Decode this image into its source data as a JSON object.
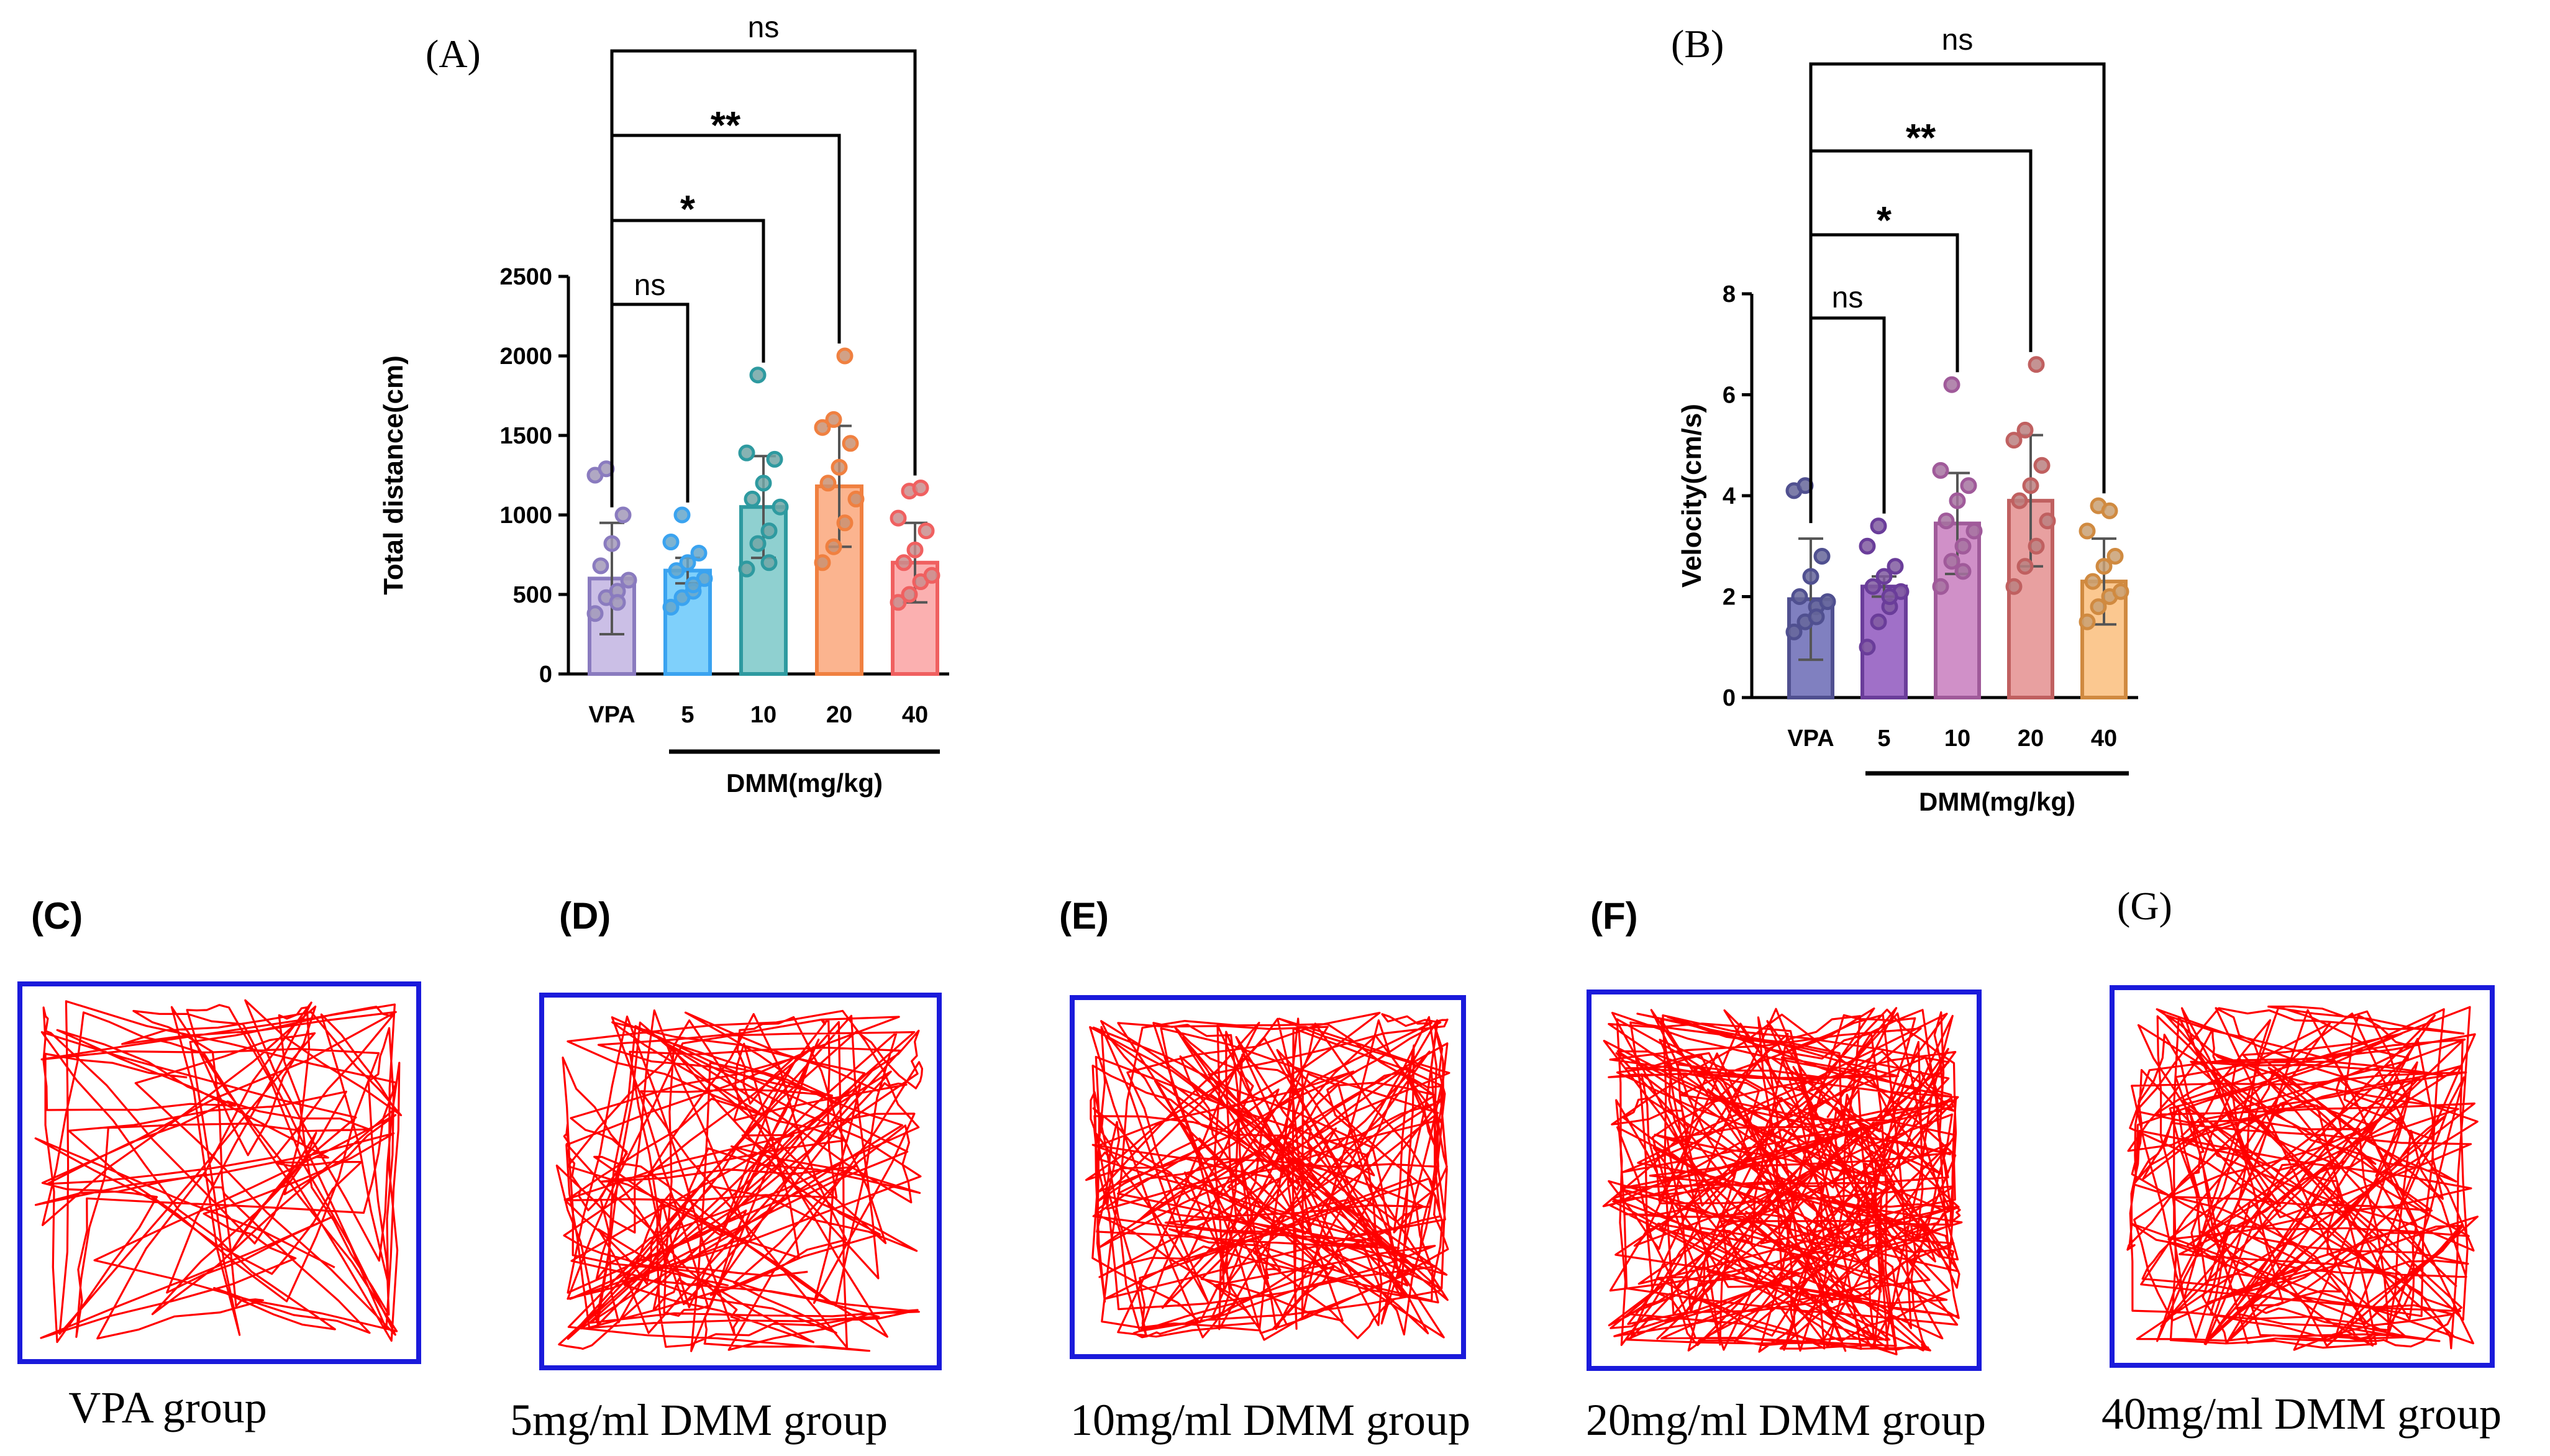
{
  "figure": {
    "panel_labels": {
      "A": "(A)",
      "B": "(B)",
      "C": "(C)",
      "D": "(D)",
      "E": "(E)",
      "F": "(F)",
      "G": "(G)"
    }
  },
  "chart_data": [
    {
      "type": "bar",
      "panel": "(A)",
      "title": "",
      "ylabel": "Total distance(cm)",
      "xlabel": "DMM(mg/kg)",
      "categories": [
        "VPA",
        "5",
        "10",
        "20",
        "40"
      ],
      "values": [
        600,
        650,
        1050,
        1180,
        700
      ],
      "sd": [
        350,
        80,
        320,
        380,
        250
      ],
      "ylim": [
        0,
        2500
      ],
      "yticks": [
        0,
        500,
        1000,
        1500,
        2000,
        2500
      ],
      "ytick_labels": [
        "0",
        "500",
        "1000",
        "1500",
        "2000",
        "2500"
      ],
      "colors": {
        "fill": [
          "#cbbfe6",
          "#7fd0fb",
          "#8fd0d0",
          "#fbb48f",
          "#fbb0b0"
        ],
        "edge": [
          "#8a7bbf",
          "#3aa3f0",
          "#2e9aa0",
          "#f08040",
          "#f06060"
        ]
      },
      "points": [
        [
          380,
          480,
          520,
          590,
          680,
          820,
          1000,
          1250,
          1290,
          450
        ],
        [
          420,
          480,
          520,
          600,
          650,
          700,
          760,
          830,
          1000,
          560
        ],
        [
          660,
          820,
          900,
          1050,
          1100,
          1200,
          1350,
          1390,
          1880,
          700
        ],
        [
          700,
          800,
          950,
          1100,
          1200,
          1300,
          1450,
          1550,
          1600,
          2000
        ],
        [
          450,
          500,
          580,
          620,
          700,
          780,
          900,
          980,
          1150,
          1170
        ]
      ],
      "comparisons": [
        {
          "from": "VPA",
          "to": "5",
          "label": "ns"
        },
        {
          "from": "VPA",
          "to": "10",
          "label": "*"
        },
        {
          "from": "VPA",
          "to": "20",
          "label": "**"
        },
        {
          "from": "VPA",
          "to": "40",
          "label": "ns"
        }
      ]
    },
    {
      "type": "bar",
      "panel": "(B)",
      "title": "",
      "ylabel": "Velocity(cm/s)",
      "xlabel": "DMM(mg/kg)",
      "categories": [
        "VPA",
        "5",
        "10",
        "20",
        "40"
      ],
      "values": [
        1.95,
        2.2,
        3.45,
        3.9,
        2.3
      ],
      "sd": [
        1.2,
        0.2,
        1.0,
        1.3,
        0.85
      ],
      "ylim": [
        0,
        8
      ],
      "yticks": [
        0,
        2,
        4,
        6,
        8
      ],
      "ytick_labels": [
        "0",
        "2",
        "4",
        "6",
        "8"
      ],
      "colors": {
        "fill": [
          "#8080c0",
          "#a070c8",
          "#d090c8",
          "#e8a0a0",
          "#fbc890"
        ],
        "edge": [
          "#505090",
          "#6a3d9a",
          "#a05a9a",
          "#c06060",
          "#d08a40"
        ]
      },
      "points": [
        [
          1.3,
          1.5,
          1.8,
          1.9,
          2.0,
          2.4,
          2.8,
          4.1,
          4.2,
          1.6
        ],
        [
          1.0,
          1.5,
          1.8,
          2.1,
          2.2,
          2.4,
          2.6,
          3.0,
          3.4,
          2.0
        ],
        [
          2.2,
          2.7,
          3.0,
          3.3,
          3.5,
          3.9,
          4.2,
          4.5,
          6.2,
          2.5
        ],
        [
          2.2,
          2.6,
          3.0,
          3.5,
          3.9,
          4.2,
          4.6,
          5.1,
          5.3,
          6.6
        ],
        [
          1.5,
          1.8,
          2.0,
          2.1,
          2.3,
          2.6,
          2.8,
          3.3,
          3.8,
          3.7
        ]
      ],
      "comparisons": [
        {
          "from": "VPA",
          "to": "5",
          "label": "ns"
        },
        {
          "from": "VPA",
          "to": "10",
          "label": "*"
        },
        {
          "from": "VPA",
          "to": "20",
          "label": "**"
        },
        {
          "from": "VPA",
          "to": "40",
          "label": "ns"
        }
      ]
    }
  ],
  "tracks": [
    {
      "label": "(C)",
      "caption": "VPA group",
      "density": 1
    },
    {
      "label": "(D)",
      "caption": "5mg/ml DMM group",
      "density": 2
    },
    {
      "label": "(E)",
      "caption": "10mg/ml DMM group",
      "density": 3
    },
    {
      "label": "(F)",
      "caption": "20mg/ml DMM group",
      "density": 4
    },
    {
      "label": "(G)",
      "caption": "40mg/ml DMM group",
      "density": 3
    }
  ],
  "colors": {
    "track_line": "#ff0000",
    "arena_border": "#1a1adb",
    "axis": "#000000"
  }
}
